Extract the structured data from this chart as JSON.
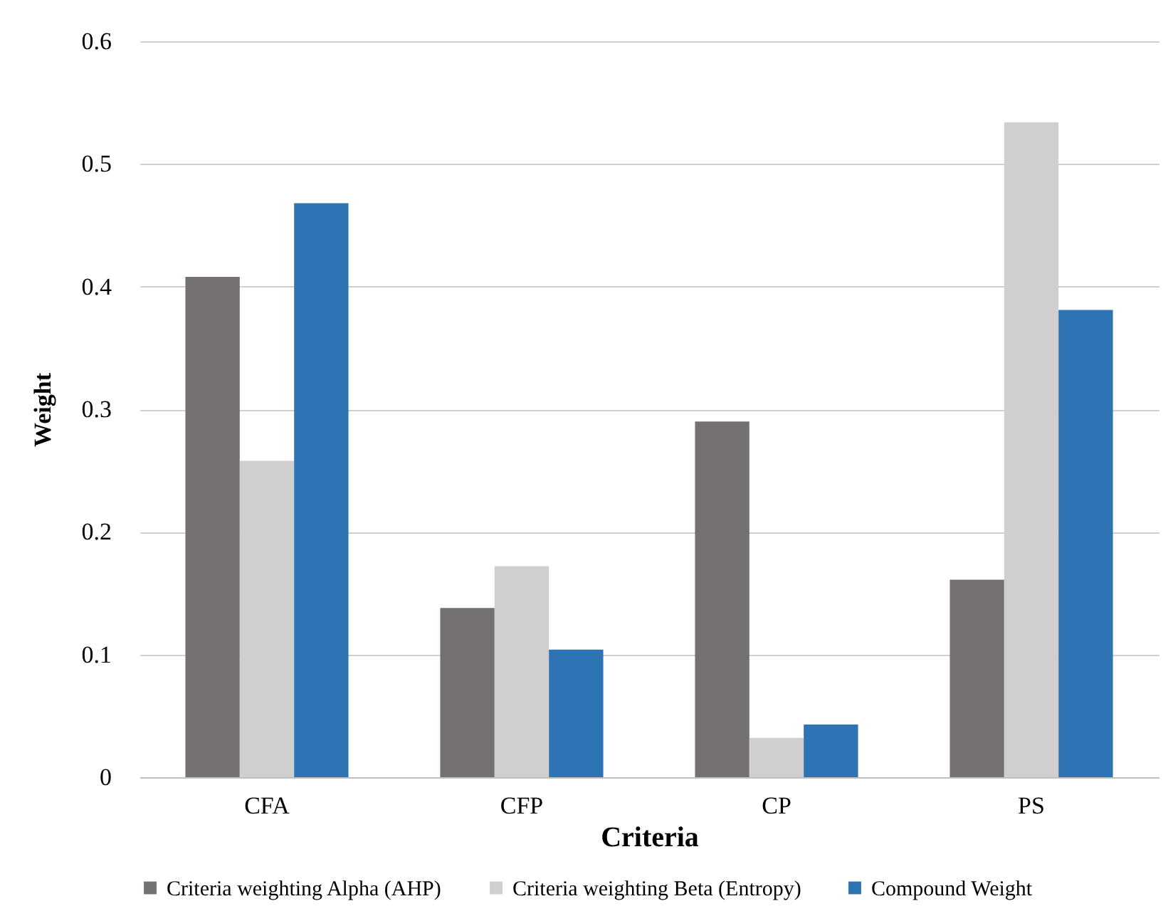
{
  "chart_data": {
    "type": "bar",
    "xlabel": "Criteria",
    "ylabel": "Weight",
    "categories": [
      "CFA",
      "CFP",
      "CP",
      "PS"
    ],
    "series": [
      {
        "name": "Criteria weighting Alpha (AHP)",
        "color": "#757170",
        "values": [
          0.408,
          0.138,
          0.29,
          0.161
        ]
      },
      {
        "name": "Criteria weighting Beta (Entropy)",
        "color": "#d0cece",
        "values": [
          0.258,
          0.172,
          0.032,
          0.534
        ]
      },
      {
        "name": "Compound Weight",
        "color": "#2e74b5",
        "values": [
          0.468,
          0.104,
          0.043,
          0.381
        ]
      }
    ],
    "ylim": [
      0,
      0.6
    ],
    "yticks": [
      0,
      0.1,
      0.2,
      0.3,
      0.4,
      0.5,
      0.6
    ],
    "grid": "y",
    "legend": "bottom"
  }
}
